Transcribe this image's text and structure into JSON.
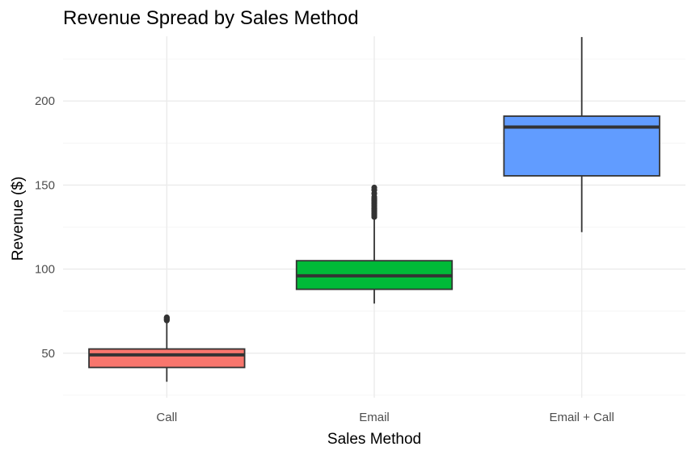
{
  "chart_data": {
    "type": "boxplot",
    "title": "Revenue Spread by Sales Method",
    "xlabel": "Sales Method",
    "ylabel": "Revenue ($)",
    "categories": [
      "Call",
      "Email",
      "Email + Call"
    ],
    "ylim": [
      23.5,
      238.5
    ],
    "yticks": [
      50,
      100,
      150,
      200
    ],
    "yticks_minor": [
      25,
      75,
      125,
      175,
      225
    ],
    "grid": true,
    "legend": "none",
    "boxes": [
      {
        "category": "Call",
        "color": "#F8766D",
        "min": 33,
        "q1": 41.5,
        "median": 49,
        "q3": 52.5,
        "max": 68,
        "outliers": [
          69.5,
          70,
          70.5,
          71,
          71.3
        ]
      },
      {
        "category": "Email",
        "color": "#00BA38",
        "min": 79.5,
        "q1": 88,
        "median": 96,
        "q3": 105,
        "max": 130,
        "outliers": [
          131,
          132,
          133,
          134,
          135,
          136,
          137,
          138,
          139,
          140,
          141,
          142,
          143,
          145,
          147,
          148.5
        ]
      },
      {
        "category": "Email + Call",
        "color": "#619CFF",
        "min": 122,
        "q1": 155.5,
        "median": 184.5,
        "q3": 191,
        "max": 238,
        "outliers": []
      }
    ]
  }
}
